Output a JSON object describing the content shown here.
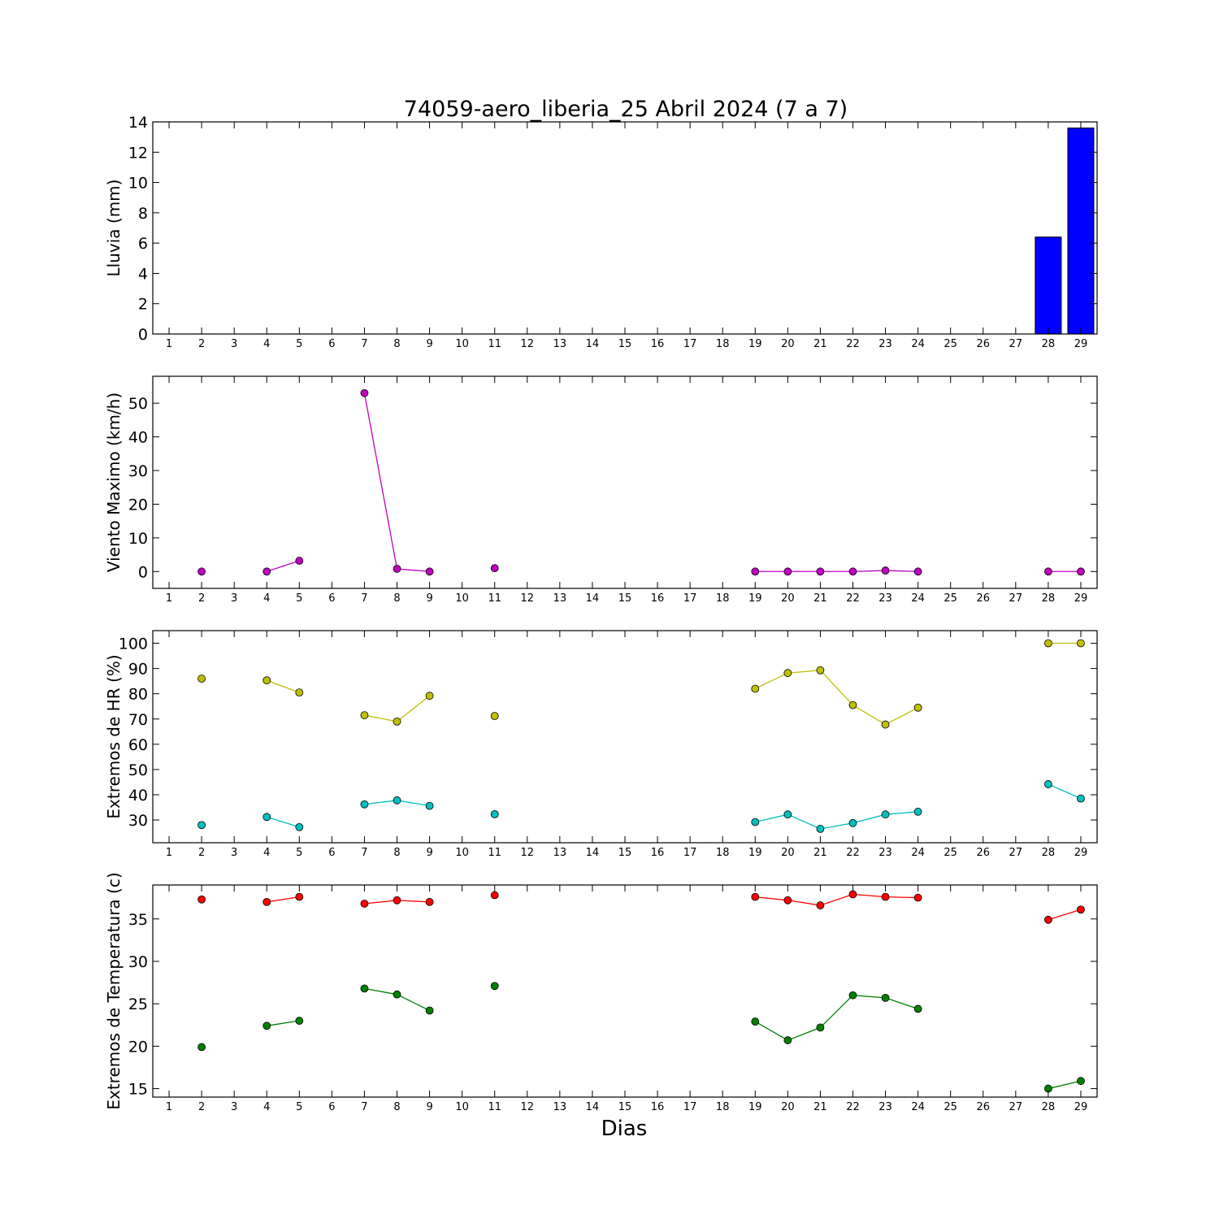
{
  "title": "74059-aero_liberia_25 Abril 2024  (7 a 7)",
  "xlabel": "Dias",
  "chart_data": [
    {
      "type": "bar",
      "ylabel": "Lluvia (mm)",
      "ylim": [
        0,
        14
      ],
      "yticks": [
        0,
        2,
        4,
        6,
        8,
        10,
        12,
        14
      ],
      "xlim": [
        0.5,
        29.5
      ],
      "categories": [
        1,
        2,
        3,
        4,
        5,
        6,
        7,
        8,
        9,
        10,
        11,
        12,
        13,
        14,
        15,
        16,
        17,
        18,
        19,
        20,
        21,
        22,
        23,
        24,
        25,
        26,
        27,
        28,
        29
      ],
      "series": [
        {
          "color": "#0000ff",
          "points": [
            [
              2,
              0
            ],
            [
              4,
              0
            ],
            [
              5,
              0
            ],
            [
              7,
              0
            ],
            [
              8,
              0
            ],
            [
              9,
              0
            ],
            [
              11,
              0
            ],
            [
              19,
              0
            ],
            [
              20,
              0
            ],
            [
              21,
              0
            ],
            [
              22,
              0
            ],
            [
              23,
              0
            ],
            [
              24,
              0
            ],
            [
              28,
              6.4
            ],
            [
              29,
              13.6
            ]
          ]
        }
      ]
    },
    {
      "type": "line",
      "ylabel": "Viento Maximo (km/h)",
      "ylim": [
        -5,
        58
      ],
      "yticks": [
        0,
        10,
        20,
        30,
        40,
        50
      ],
      "xlim": [
        0.5,
        29.5
      ],
      "categories": [
        1,
        2,
        3,
        4,
        5,
        6,
        7,
        8,
        9,
        10,
        11,
        12,
        13,
        14,
        15,
        16,
        17,
        18,
        19,
        20,
        21,
        22,
        23,
        24,
        25,
        26,
        27,
        28,
        29
      ],
      "series": [
        {
          "color": "#bf00bf",
          "points": [
            [
              2,
              0
            ],
            [
              3,
              null
            ],
            [
              4,
              0
            ],
            [
              5,
              3.2
            ],
            [
              6,
              null
            ],
            [
              7,
              53
            ],
            [
              8,
              0.8
            ],
            [
              9,
              0
            ],
            [
              10,
              null
            ],
            [
              11,
              1
            ],
            [
              12,
              null
            ],
            [
              19,
              0
            ],
            [
              20,
              0
            ],
            [
              21,
              0
            ],
            [
              22,
              0
            ],
            [
              23,
              0.3
            ],
            [
              24,
              0
            ],
            [
              25,
              null
            ],
            [
              28,
              0
            ],
            [
              29,
              0
            ]
          ]
        }
      ]
    },
    {
      "type": "line",
      "ylabel": "Extremos de HR (%)",
      "ylim": [
        21,
        105
      ],
      "yticks": [
        30,
        40,
        50,
        60,
        70,
        80,
        90,
        100
      ],
      "xlim": [
        0.5,
        29.5
      ],
      "categories": [
        1,
        2,
        3,
        4,
        5,
        6,
        7,
        8,
        9,
        10,
        11,
        12,
        13,
        14,
        15,
        16,
        17,
        18,
        19,
        20,
        21,
        22,
        23,
        24,
        25,
        26,
        27,
        28,
        29
      ],
      "series": [
        {
          "color": "#bfbf00",
          "points": [
            [
              2,
              86
            ],
            [
              3,
              null
            ],
            [
              4,
              85.3
            ],
            [
              5,
              80.5
            ],
            [
              6,
              null
            ],
            [
              7,
              71.5
            ],
            [
              8,
              69
            ],
            [
              9,
              79.2
            ],
            [
              10,
              null
            ],
            [
              11,
              71.2
            ],
            [
              12,
              null
            ],
            [
              19,
              82
            ],
            [
              20,
              88.2
            ],
            [
              21,
              89.3
            ],
            [
              22,
              75.5
            ],
            [
              23,
              67.8
            ],
            [
              24,
              74.5
            ],
            [
              25,
              null
            ],
            [
              28,
              100
            ],
            [
              29,
              100
            ]
          ]
        },
        {
          "color": "#00bfbf",
          "points": [
            [
              2,
              28
            ],
            [
              3,
              null
            ],
            [
              4,
              31.2
            ],
            [
              5,
              27.2
            ],
            [
              6,
              null
            ],
            [
              7,
              36.2
            ],
            [
              8,
              37.8
            ],
            [
              9,
              35.6
            ],
            [
              10,
              null
            ],
            [
              11,
              32.3
            ],
            [
              12,
              null
            ],
            [
              19,
              29.2
            ],
            [
              20,
              32.2
            ],
            [
              21,
              26.5
            ],
            [
              22,
              28.8
            ],
            [
              23,
              32.2
            ],
            [
              24,
              33.3
            ],
            [
              25,
              null
            ],
            [
              28,
              44.2
            ],
            [
              29,
              38.5
            ]
          ]
        }
      ]
    },
    {
      "type": "line",
      "ylabel": "Extremos de Temperatura (c)",
      "ylim": [
        14,
        39
      ],
      "yticks": [
        15,
        20,
        25,
        30,
        35
      ],
      "xlim": [
        0.5,
        29.5
      ],
      "categories": [
        1,
        2,
        3,
        4,
        5,
        6,
        7,
        8,
        9,
        10,
        11,
        12,
        13,
        14,
        15,
        16,
        17,
        18,
        19,
        20,
        21,
        22,
        23,
        24,
        25,
        26,
        27,
        28,
        29
      ],
      "series": [
        {
          "color": "#ff0000",
          "points": [
            [
              2,
              37.3
            ],
            [
              3,
              null
            ],
            [
              4,
              37
            ],
            [
              5,
              37.6
            ],
            [
              6,
              null
            ],
            [
              7,
              36.8
            ],
            [
              8,
              37.2
            ],
            [
              9,
              37
            ],
            [
              10,
              null
            ],
            [
              11,
              37.8
            ],
            [
              12,
              null
            ],
            [
              19,
              37.6
            ],
            [
              20,
              37.2
            ],
            [
              21,
              36.6
            ],
            [
              22,
              37.9
            ],
            [
              23,
              37.6
            ],
            [
              24,
              37.5
            ],
            [
              25,
              null
            ],
            [
              28,
              34.9
            ],
            [
              29,
              36.1
            ]
          ]
        },
        {
          "color": "#008000",
          "points": [
            [
              2,
              19.9
            ],
            [
              3,
              null
            ],
            [
              4,
              22.4
            ],
            [
              5,
              23
            ],
            [
              6,
              null
            ],
            [
              7,
              26.8
            ],
            [
              8,
              26.1
            ],
            [
              9,
              24.2
            ],
            [
              10,
              null
            ],
            [
              11,
              27.1
            ],
            [
              12,
              null
            ],
            [
              19,
              22.9
            ],
            [
              20,
              20.7
            ],
            [
              21,
              22.2
            ],
            [
              22,
              26
            ],
            [
              23,
              25.7
            ],
            [
              24,
              24.4
            ],
            [
              25,
              null
            ],
            [
              28,
              15
            ],
            [
              29,
              15.9
            ]
          ]
        }
      ]
    }
  ]
}
